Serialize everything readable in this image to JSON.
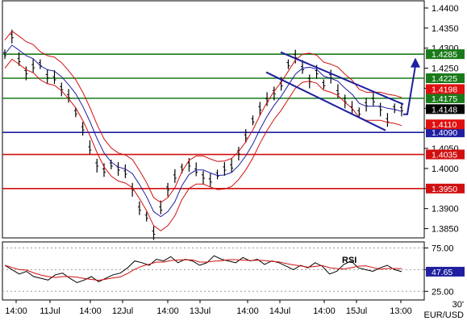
{
  "chart_data": [
    {
      "type": "line",
      "symbol": "EUR/USD",
      "timeframe": "30'",
      "y_ticks": [
        "1.4400",
        "1.4350",
        "1.4300",
        "1.4250",
        "1.4200",
        "1.4150",
        "1.4100",
        "1.4050",
        "1.4000",
        "1.3950",
        "1.3900",
        "1.3850"
      ],
      "ylim": [
        1.3825,
        1.442
      ],
      "x_ticks": [
        "14:00",
        "11Jul",
        "14:00",
        "12Jul",
        "14:00",
        "13Jul",
        "14:00",
        "14Jul",
        "14:00",
        "15Jul",
        "13:00"
      ],
      "horizontal_levels": [
        {
          "value": 1.4285,
          "label": "1.4285",
          "color": "#1a7a1a"
        },
        {
          "value": 1.4225,
          "label": "1.4225",
          "color": "#1a7a1a"
        },
        {
          "value": 1.4175,
          "label": "1.4175",
          "color": "#1a7a1a"
        },
        {
          "value": 1.409,
          "label": "1.4090",
          "color": "#1f1fa0"
        },
        {
          "value": 1.4035,
          "label": "1.4035",
          "color": "#d01010"
        },
        {
          "value": 1.395,
          "label": "1.3950",
          "color": "#d01010"
        }
      ],
      "price_badges": [
        {
          "value": 1.4198,
          "label": "1.4198",
          "color": "#e01010"
        },
        {
          "value": 1.4148,
          "label": "1.4148",
          "color": "#000000"
        },
        {
          "value": 1.411,
          "label": "1.4110",
          "color": "#e01010"
        }
      ],
      "channel": {
        "upper": [
          [
            348,
            1.429
          ],
          [
            500,
            1.416
          ]
        ],
        "lower": [
          [
            330,
            1.424
          ],
          [
            478,
            1.4095
          ]
        ]
      },
      "forecast_arrow": {
        "from": [
          500,
          1.4135
        ],
        "via": [
          505,
          1.4135
        ],
        "to": [
          515,
          1.4268
        ]
      },
      "close_approx": [
        1.4285,
        1.433,
        1.427,
        1.424,
        1.4255,
        1.426,
        1.423,
        1.4225,
        1.42,
        1.418,
        1.414,
        1.41,
        1.405,
        1.401,
        1.3995,
        1.401,
        1.4,
        1.399,
        1.395,
        1.39,
        1.388,
        1.384,
        1.39,
        1.395,
        1.398,
        1.4,
        1.401,
        1.3995,
        1.398,
        1.397,
        1.3985,
        1.4,
        1.4005,
        1.404,
        1.408,
        1.412,
        1.415,
        1.417,
        1.419,
        1.421,
        1.426,
        1.428,
        1.425,
        1.422,
        1.424,
        1.421,
        1.423,
        1.419,
        1.417,
        1.415,
        1.414,
        1.416,
        1.417,
        1.415,
        1.412,
        1.415,
        1.4148
      ]
    },
    {
      "type": "line",
      "title": "RSI",
      "y_ticks": [
        "75.00",
        "50.00",
        "25.00"
      ],
      "ylim": [
        15,
        82
      ],
      "current_value": "47.65",
      "current_color": "#1f1fa0",
      "rsi_approx": [
        55,
        50,
        45,
        48,
        42,
        40,
        38,
        44,
        46,
        40,
        35,
        38,
        42,
        36,
        40,
        44,
        46,
        52,
        60,
        58,
        55,
        62,
        60,
        65,
        58,
        62,
        60,
        55,
        58,
        66,
        62,
        60,
        58,
        64,
        60,
        62,
        56,
        60,
        58,
        54,
        50,
        55,
        52,
        58,
        54,
        45,
        48,
        56,
        60,
        52,
        50,
        48,
        52,
        55,
        50,
        47.65
      ]
    }
  ]
}
